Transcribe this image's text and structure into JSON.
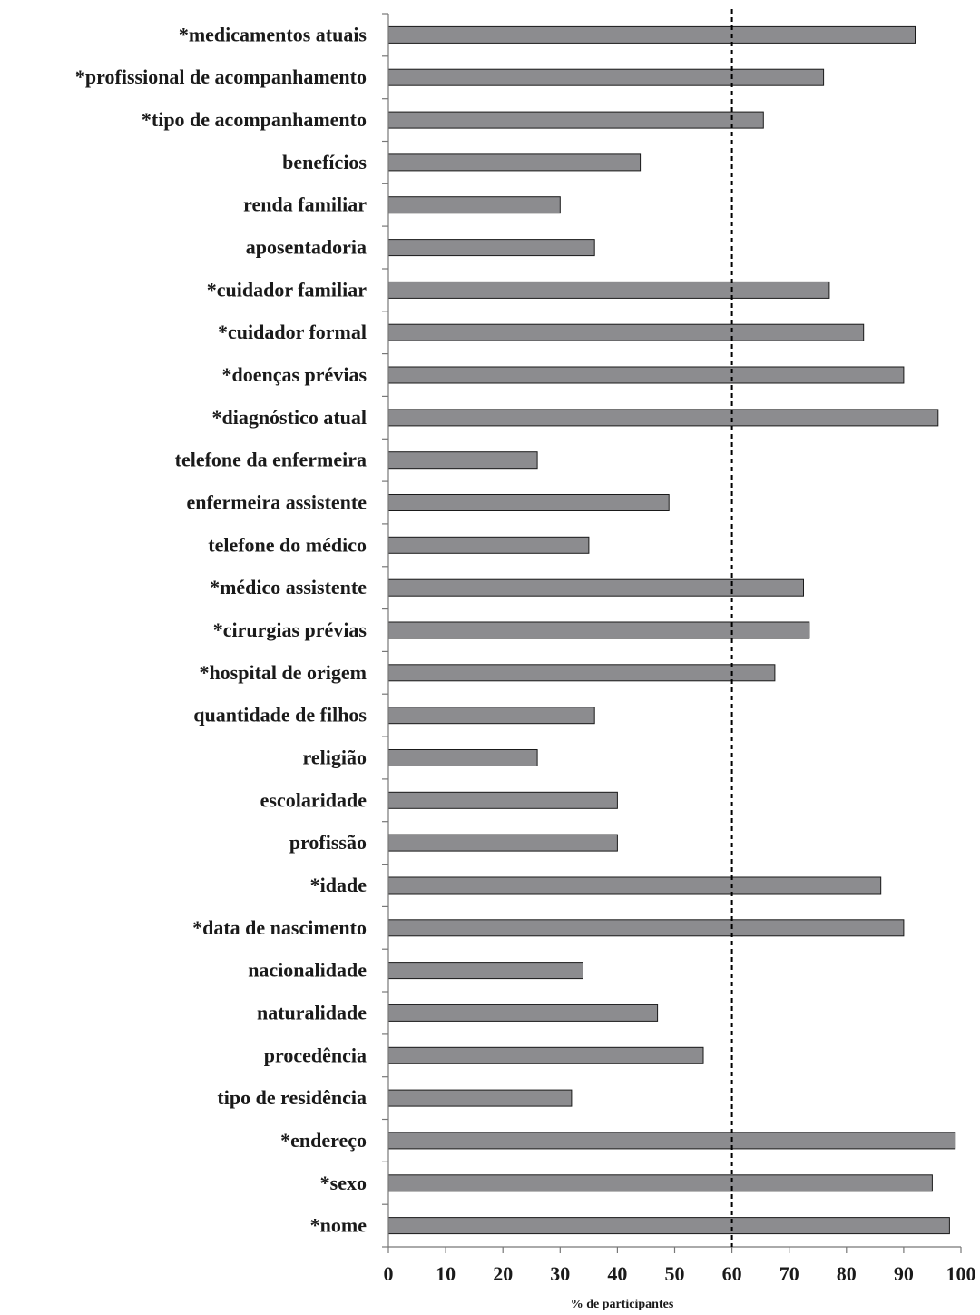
{
  "chart_data": {
    "type": "bar",
    "orientation": "horizontal",
    "categories": [
      "*medicamentos atuais",
      "*profissional de acompanhamento",
      "*tipo de acompanhamento",
      "benefícios",
      "renda familiar",
      "aposentadoria",
      "*cuidador familiar",
      "*cuidador formal",
      "*doenças prévias",
      "*diagnóstico atual",
      "telefone da enfermeira",
      "enfermeira assistente",
      "telefone do médico",
      "*médico assistente",
      "*cirurgias prévias",
      "*hospital de origem",
      "quantidade de filhos",
      "religião",
      "escolaridade",
      "profissão",
      "*idade",
      "*data de nascimento",
      "nacionalidade",
      "naturalidade",
      "procedência",
      "tipo de residência",
      "*endereço",
      "*sexo",
      "*nome"
    ],
    "values": [
      92,
      76,
      65.5,
      44,
      30,
      36,
      77,
      83,
      90,
      96,
      26,
      49,
      35,
      72.5,
      73.5,
      67.5,
      36,
      26,
      40,
      40,
      86,
      90,
      34,
      47,
      55,
      32,
      99,
      95,
      98
    ],
    "xlabel": "% de participantes",
    "xlim": [
      0,
      100
    ],
    "xticks": [
      "0",
      "10",
      "20",
      "30",
      "40",
      "50",
      "60",
      "70",
      "80",
      "90",
      "100"
    ],
    "reference_line": 60,
    "bar_color": "#8c8c8f",
    "grid": false
  }
}
